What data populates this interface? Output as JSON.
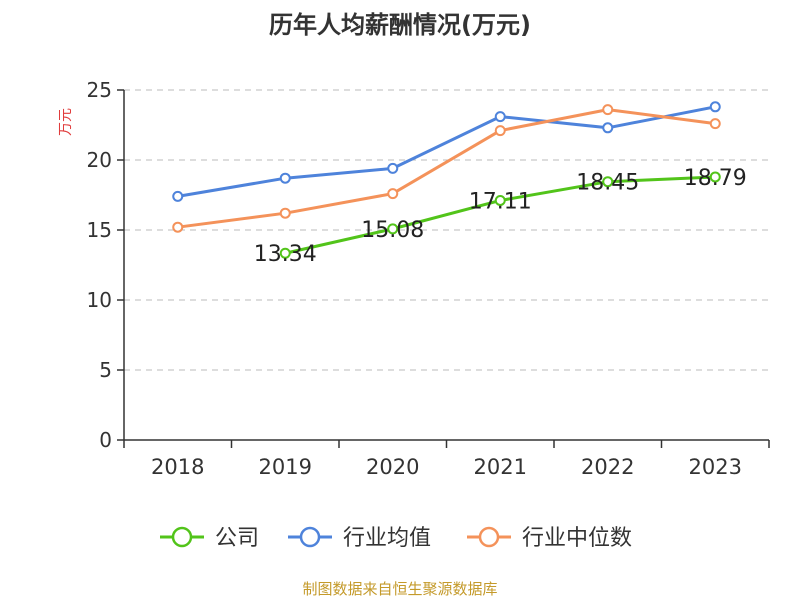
{
  "chart_data": {
    "type": "line",
    "title": "历年人均薪酬情况(万元)",
    "ylabel": "万元",
    "xlabel": "",
    "categories": [
      "2018",
      "2019",
      "2020",
      "2021",
      "2022",
      "2023"
    ],
    "ylim": [
      0,
      25
    ],
    "yticks": [
      0,
      5,
      10,
      15,
      20,
      25
    ],
    "grid": true,
    "legend_position": "bottom",
    "series": [
      {
        "name": "公司",
        "color": "#52c41a",
        "values": [
          null,
          13.34,
          15.08,
          17.11,
          18.45,
          18.79
        ],
        "labels": [
          "",
          "13.34",
          "15.08",
          "17.11",
          "18.45",
          "18.79"
        ]
      },
      {
        "name": "行业均值",
        "color": "#4e83db",
        "values": [
          17.4,
          18.7,
          19.4,
          23.1,
          22.3,
          23.8
        ]
      },
      {
        "name": "行业中位数",
        "color": "#f4925a",
        "values": [
          15.2,
          16.2,
          17.6,
          22.1,
          23.6,
          22.6
        ]
      }
    ]
  },
  "colors": {
    "ylabel": "#e03c3c",
    "source": "#c49a2a",
    "axis": "#333333",
    "grid": "#bbbbbb"
  },
  "source": "制图数据来自恒生聚源数据库"
}
